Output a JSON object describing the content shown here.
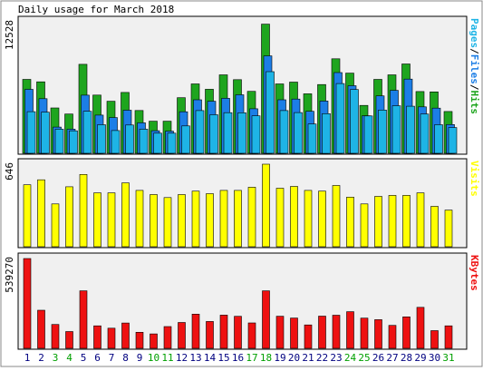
{
  "chart_data": {
    "type": "bar",
    "title": "Daily usage for March 2018",
    "categories": [
      "1",
      "2",
      "3",
      "4",
      "5",
      "6",
      "7",
      "8",
      "9",
      "10",
      "11",
      "12",
      "13",
      "14",
      "15",
      "16",
      "17",
      "18",
      "19",
      "20",
      "21",
      "22",
      "23",
      "24",
      "25",
      "26",
      "27",
      "28",
      "29",
      "30",
      "31"
    ],
    "weekend_days": [
      "3",
      "4",
      "10",
      "11",
      "17",
      "18",
      "24",
      "25",
      "31"
    ],
    "colors": {
      "hits": "#1ea51e",
      "files": "#1c7ee6",
      "pages": "#1eb4e6",
      "visits": "#ffff00",
      "kbytes": "#ee1111",
      "weekday_label": "#000080",
      "weekend_label": "#00a000",
      "panel_bg": "#f0f0f0",
      "page_bg": "#ffffff"
    },
    "panels": [
      {
        "id": "hits-files-pages",
        "max_label": "12528",
        "ylim": [
          0,
          12528
        ],
        "right_label": [
          {
            "text": "Pages",
            "color": "#1eb4e6"
          },
          {
            "text": "/",
            "color": "#000000"
          },
          {
            "text": "Files",
            "color": "#1c7ee6"
          },
          {
            "text": "/",
            "color": "#000000"
          },
          {
            "text": "Hits",
            "color": "#1ea51e"
          }
        ],
        "series": [
          {
            "name": "Hits",
            "color": "#1ea51e",
            "values": [
              7040,
              6810,
              4320,
              3740,
              8480,
              5550,
              4960,
              5800,
              4080,
              3060,
              3060,
              5300,
              6610,
              6100,
              7470,
              7020,
              5900,
              12300,
              6610,
              6780,
              5670,
              6550,
              9000,
              7640,
              4560,
              7040,
              7470,
              8510,
              5880,
              5850,
              3980
            ]
          },
          {
            "name": "Files",
            "color": "#1c7ee6",
            "values": [
              6090,
              5200,
              2500,
              2300,
              5540,
              3640,
              3400,
              4100,
              2900,
              2150,
              2110,
              3960,
              5100,
              4960,
              5240,
              5570,
              4240,
              9280,
              5100,
              5170,
              4000,
              4980,
              7690,
              6440,
              3580,
              5470,
              6000,
              7070,
              4420,
              4300,
              2740
            ]
          },
          {
            "name": "Pages",
            "color": "#1eb4e6",
            "values": [
              3970,
              3910,
              2300,
              2140,
              4000,
              2720,
              2170,
              2700,
              2300,
              1920,
              1920,
              2610,
              4070,
              3670,
              3870,
              3860,
              3570,
              7780,
              4070,
              3880,
              2790,
              3780,
              6640,
              6070,
              3560,
              4120,
              4530,
              4480,
              3740,
              2720,
              2450
            ]
          }
        ]
      },
      {
        "id": "visits",
        "max_label": "646",
        "ylim": [
          0,
          646
        ],
        "right_label": [
          {
            "text": "Visits",
            "color": "#ffff00"
          }
        ],
        "series": [
          {
            "name": "Visits",
            "color": "#ffff00",
            "values": [
              485,
              524,
              335,
              469,
              566,
              422,
              422,
              500,
              441,
              408,
              385,
              408,
              435,
              415,
              441,
              441,
              466,
              646,
              458,
              472,
              441,
              435,
              479,
              388,
              335,
              394,
              402,
              402,
              422,
              316,
              287
            ]
          }
        ]
      },
      {
        "id": "kbytes",
        "max_label": "539270",
        "ylim": [
          0,
          539270
        ],
        "right_label": [
          {
            "text": "KBytes",
            "color": "#ee1111"
          }
        ],
        "series": [
          {
            "name": "KBytes",
            "color": "#ee1111",
            "values": [
              539270,
              229000,
              143200,
              100700,
              345500,
              135300,
              121100,
              151800,
              96400,
              86600,
              130700,
              155500,
              205200,
              161300,
              199500,
              192400,
              152600,
              345500,
              192900,
              182100,
              140500,
              193600,
              198900,
              220300,
              181200,
              172400,
              137800,
              189000,
              246000,
              106000,
              135300
            ]
          }
        ]
      }
    ]
  }
}
